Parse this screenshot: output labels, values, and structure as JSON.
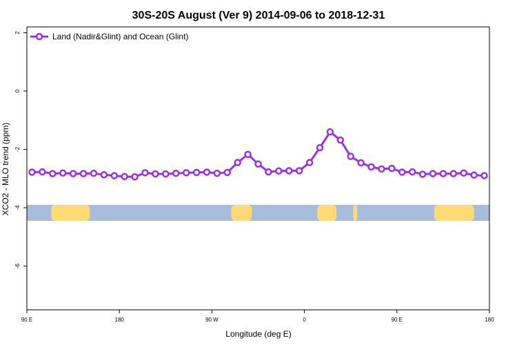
{
  "chart_data": {
    "type": "line",
    "title": "30S-20S August (Ver 9)   2014-09-06 to 2018-12-31",
    "xlabel": "Longitude (deg E)",
    "ylabel": "XCO2 - MLO trend (ppm)",
    "xlim": [
      90,
      450
    ],
    "ylim": [
      -7.5,
      2.2
    ],
    "x_ticks": [
      {
        "value": 90,
        "label": "90 E"
      },
      {
        "value": 162,
        "label": "180"
      },
      {
        "value": 234,
        "label": "90 W"
      },
      {
        "value": 306,
        "label": "0"
      },
      {
        "value": 378,
        "label": "90 E"
      },
      {
        "value": 450,
        "label": "180"
      }
    ],
    "y_ticks": [
      {
        "value": 2,
        "label": "2"
      },
      {
        "value": 0,
        "label": "0"
      },
      {
        "value": -2,
        "label": "-2"
      },
      {
        "value": -4,
        "label": "-4"
      },
      {
        "value": -6,
        "label": "-6"
      }
    ],
    "grid": false,
    "legend_position": "top-left",
    "series": [
      {
        "name": "Land (Nadir&Glint) and Ocean (Glint)",
        "color": "#9b30e0",
        "x": [
          94,
          102,
          110,
          118,
          126,
          134,
          142,
          150,
          158,
          166,
          174,
          182,
          190,
          198,
          206,
          214,
          222,
          230,
          238,
          246,
          254,
          262,
          270,
          278,
          286,
          294,
          302,
          310,
          318,
          326,
          334,
          342,
          350,
          358,
          366,
          374,
          382,
          390,
          398,
          406,
          414,
          422,
          430,
          438,
          446
        ],
        "y": [
          -2.78,
          -2.77,
          -2.83,
          -2.81,
          -2.83,
          -2.83,
          -2.82,
          -2.87,
          -2.9,
          -2.93,
          -2.94,
          -2.8,
          -2.84,
          -2.84,
          -2.82,
          -2.8,
          -2.79,
          -2.78,
          -2.82,
          -2.79,
          -2.45,
          -2.17,
          -2.5,
          -2.77,
          -2.74,
          -2.73,
          -2.73,
          -2.45,
          -1.94,
          -1.4,
          -1.68,
          -2.24,
          -2.46,
          -2.6,
          -2.67,
          -2.65,
          -2.78,
          -2.77,
          -2.85,
          -2.83,
          -2.83,
          -2.83,
          -2.81,
          -2.88,
          -2.9
        ]
      }
    ],
    "map_strip": {
      "description": "world map strip",
      "ocean_color": "#a6bddb",
      "land_color": "#fedb75",
      "y_top": -3.9,
      "y_bottom": -4.45,
      "land_ranges": [
        [
          109,
          139
        ],
        [
          249,
          265
        ],
        [
          316,
          331
        ],
        [
          344,
          347
        ],
        [
          407,
          438
        ]
      ]
    }
  }
}
